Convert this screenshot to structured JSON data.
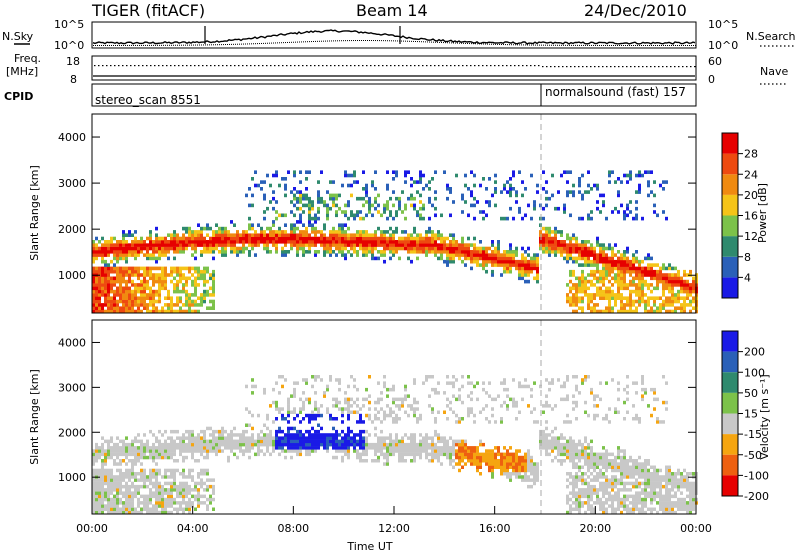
{
  "header": {
    "radar": "TIGER (fitACF)",
    "beam": "Beam 14",
    "date": "24/Dec/2010"
  },
  "top_panels": {
    "nsky_label": "N.Sky",
    "nsearch_label": "N.Search",
    "freq_label_1": "Freq.",
    "freq_label_2": "[MHz]",
    "nave_label": "Nave",
    "cpid_label": "CPID",
    "left_ticks_sky": [
      "10^5",
      "10^0"
    ],
    "right_ticks_sky": [
      "10^5",
      "10^0"
    ],
    "left_ticks_freq": [
      "18",
      "8"
    ],
    "right_ticks_nave": [
      "60",
      "0"
    ],
    "cpid_1": "stereo_scan 8551",
    "cpid_2": "normalsound (fast) 157"
  },
  "chart_data": [
    {
      "type": "heatmap",
      "name": "power",
      "ylabel": "Slant Range [km]",
      "yticks": [
        "1000",
        "2000",
        "3000",
        "4000"
      ],
      "ylim": [
        180,
        4500
      ],
      "colorbar_label": "Power [dB]",
      "colorbar_ticks": [
        "4",
        "8",
        "12",
        "16",
        "20",
        "24",
        "28"
      ],
      "colors": [
        "#1a1ae6",
        "#2a60b8",
        "#2f8a6e",
        "#7cc24a",
        "#f5c418",
        "#f08a10",
        "#ee4a10",
        "#e60000"
      ]
    },
    {
      "type": "heatmap",
      "name": "velocity",
      "xlabel": "Time UT",
      "ylabel": "Slant Range [km]",
      "yticks": [
        "1000",
        "2000",
        "3000",
        "4000"
      ],
      "ylim": [
        180,
        4500
      ],
      "xticks": [
        "00:00",
        "04:00",
        "08:00",
        "12:00",
        "16:00",
        "20:00",
        "00:00"
      ],
      "colorbar_label": "Velocity [m s⁻¹]",
      "colorbar_ticks": [
        "200",
        "100",
        "50",
        "15",
        "-15",
        "-50",
        "-100",
        "-200"
      ],
      "colors": [
        "#1a1ae6",
        "#2a60b8",
        "#2f8a6e",
        "#7cc24a",
        "#c8c8c8",
        "#f5a510",
        "#ee6010",
        "#e60000"
      ]
    }
  ]
}
